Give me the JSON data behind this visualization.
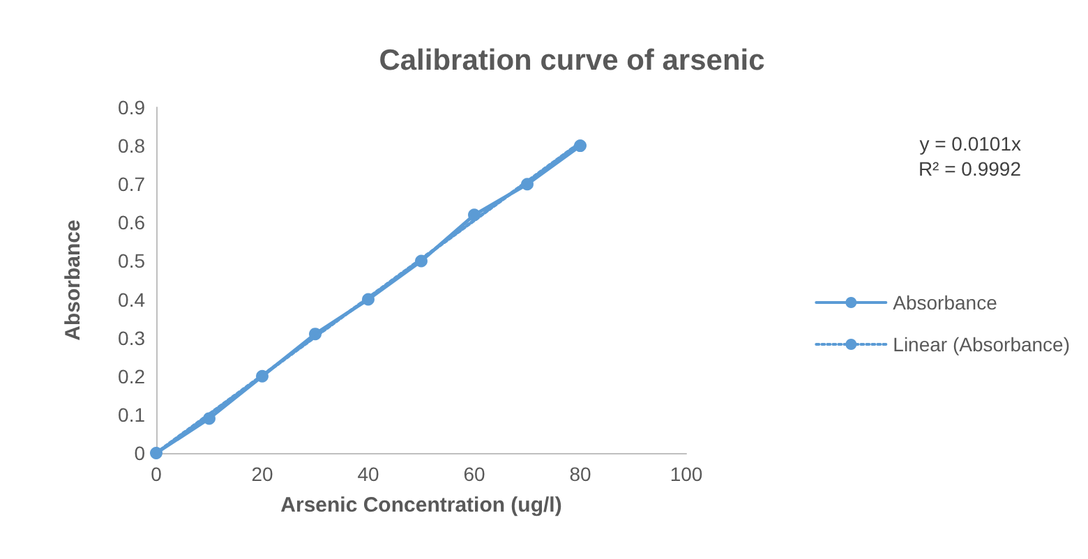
{
  "chart_data": {
    "type": "line",
    "title": "Calibration curve of arsenic",
    "xlabel": "Arsenic Concentration (ug/l)",
    "ylabel": "Absorbance",
    "x": [
      0,
      10,
      20,
      30,
      40,
      50,
      60,
      70,
      80
    ],
    "series": [
      {
        "name": "Absorbance",
        "color": "#5b9bd5",
        "values": [
          0,
          0.09,
          0.2,
          0.31,
          0.4,
          0.5,
          0.62,
          0.7,
          0.8
        ],
        "marker": "circle",
        "line_style": "solid"
      },
      {
        "name": "Linear (Absorbance)",
        "color": "#5b9bd5",
        "x": [
          0,
          80
        ],
        "values": [
          0,
          0.808
        ],
        "marker": "none",
        "line_style": "dotted"
      }
    ],
    "xlim": [
      0,
      100
    ],
    "xticks": [
      0,
      20,
      40,
      60,
      80,
      100
    ],
    "ylim": [
      0,
      0.9
    ],
    "yticks": [
      0,
      0.1,
      0.2,
      0.3,
      0.4,
      0.5,
      0.6,
      0.7,
      0.8,
      0.9
    ],
    "grid": false,
    "legend": "right",
    "annotations": [
      "y = 0.0101x",
      "R² = 0.9992"
    ]
  }
}
